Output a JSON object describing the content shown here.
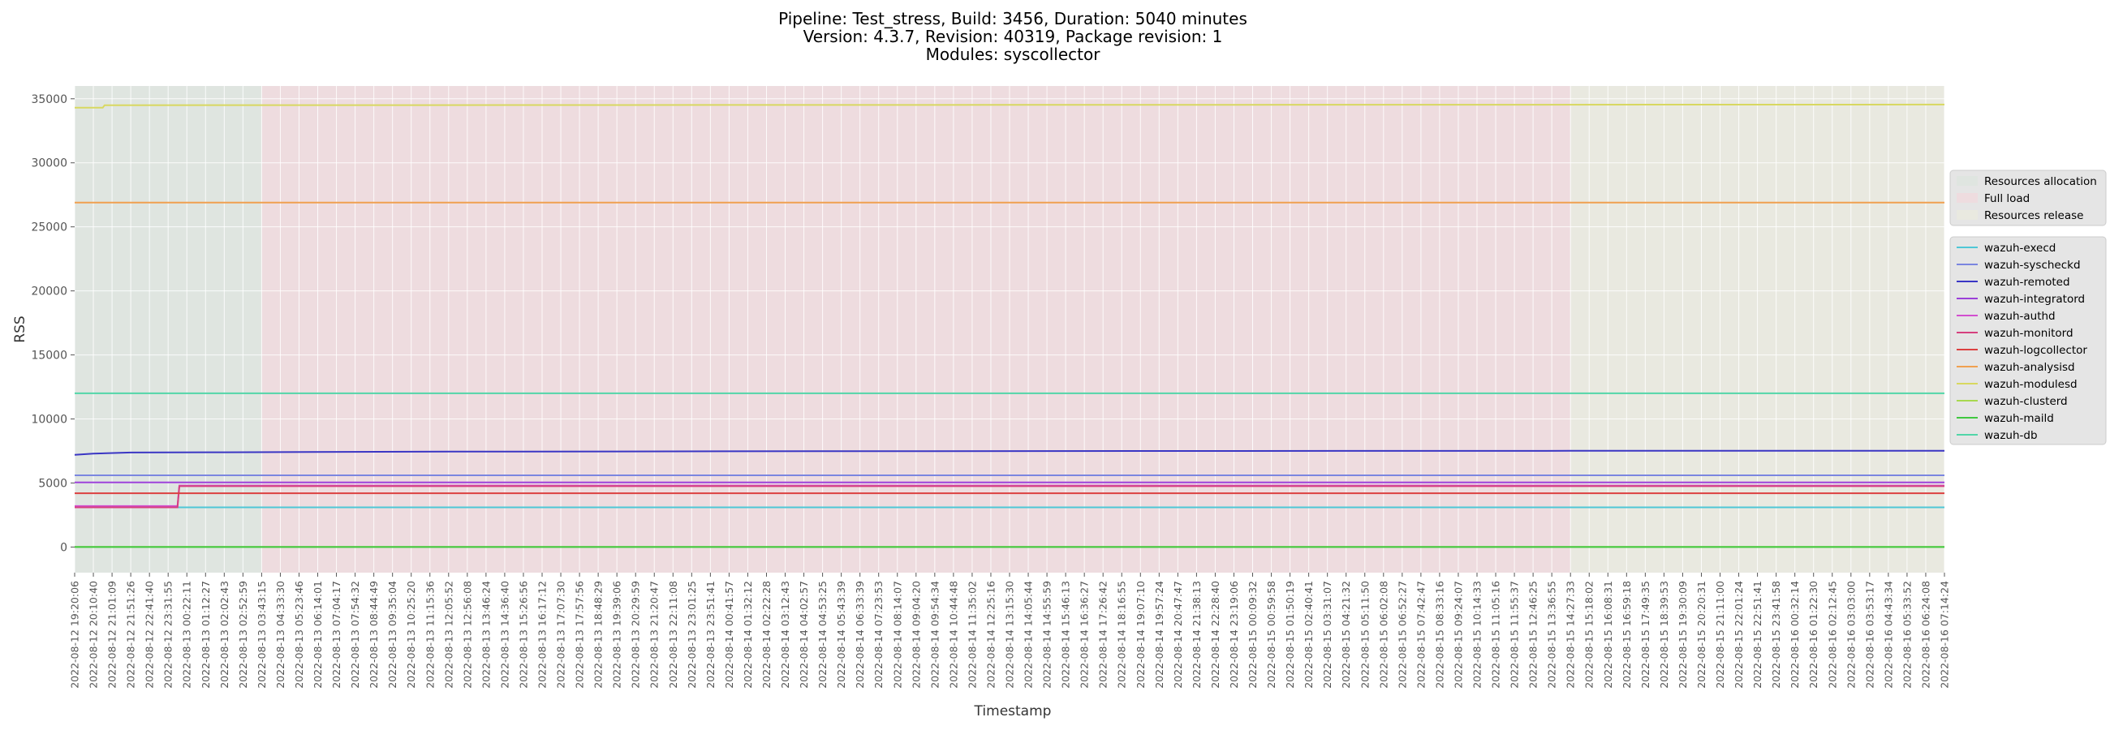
{
  "chart_data": {
    "type": "line",
    "title": [
      "Pipeline: Test_stress, Build: 3456, Duration: 5040 minutes",
      "Version: 4.3.7, Revision: 40319, Package revision: 1",
      "Modules: syscollector"
    ],
    "xlabel": "Timestamp",
    "ylabel": "RSS",
    "ylim": [
      -2000,
      36000
    ],
    "yticks": [
      0,
      5000,
      10000,
      15000,
      20000,
      25000,
      30000,
      35000
    ],
    "grid": true,
    "background": "#e5e5e5",
    "x_categories": [
      "2022-08-12 19:20:06",
      "2022-08-12 20:10:40",
      "2022-08-12 21:01:09",
      "2022-08-12 21:51:26",
      "2022-08-12 22:41:40",
      "2022-08-12 23:31:55",
      "2022-08-13 00:22:11",
      "2022-08-13 01:12:27",
      "2022-08-13 02:02:43",
      "2022-08-13 02:52:59",
      "2022-08-13 03:43:15",
      "2022-08-13 04:33:30",
      "2022-08-13 05:23:46",
      "2022-08-13 06:14:01",
      "2022-08-13 07:04:17",
      "2022-08-13 07:54:32",
      "2022-08-13 08:44:49",
      "2022-08-13 09:35:04",
      "2022-08-13 10:25:20",
      "2022-08-13 11:15:36",
      "2022-08-13 12:05:52",
      "2022-08-13 12:56:08",
      "2022-08-13 13:46:24",
      "2022-08-13 14:36:40",
      "2022-08-13 15:26:56",
      "2022-08-13 16:17:12",
      "2022-08-13 17:07:30",
      "2022-08-13 17:57:56",
      "2022-08-13 18:48:29",
      "2022-08-13 19:39:06",
      "2022-08-13 20:29:59",
      "2022-08-13 21:20:47",
      "2022-08-13 22:11:08",
      "2022-08-13 23:01:25",
      "2022-08-13 23:51:41",
      "2022-08-14 00:41:57",
      "2022-08-14 01:32:12",
      "2022-08-14 02:22:28",
      "2022-08-14 03:12:43",
      "2022-08-14 04:02:57",
      "2022-08-14 04:53:25",
      "2022-08-14 05:43:39",
      "2022-08-14 06:33:39",
      "2022-08-14 07:23:53",
      "2022-08-14 08:14:07",
      "2022-08-14 09:04:20",
      "2022-08-14 09:54:34",
      "2022-08-14 10:44:48",
      "2022-08-14 11:35:02",
      "2022-08-14 12:25:16",
      "2022-08-14 13:15:30",
      "2022-08-14 14:05:44",
      "2022-08-14 14:55:59",
      "2022-08-14 15:46:13",
      "2022-08-14 16:36:27",
      "2022-08-14 17:26:42",
      "2022-08-14 18:16:55",
      "2022-08-14 19:07:10",
      "2022-08-14 19:57:24",
      "2022-08-14 20:47:47",
      "2022-08-14 21:38:13",
      "2022-08-14 22:28:40",
      "2022-08-14 23:19:06",
      "2022-08-15 00:09:32",
      "2022-08-15 00:59:58",
      "2022-08-15 01:50:19",
      "2022-08-15 02:40:41",
      "2022-08-15 03:31:07",
      "2022-08-15 04:21:32",
      "2022-08-15 05:11:50",
      "2022-08-15 06:02:08",
      "2022-08-15 06:52:27",
      "2022-08-15 07:42:47",
      "2022-08-15 08:33:16",
      "2022-08-15 09:24:07",
      "2022-08-15 10:14:33",
      "2022-08-15 11:05:16",
      "2022-08-15 11:55:37",
      "2022-08-15 12:46:25",
      "2022-08-15 13:36:55",
      "2022-08-15 14:27:33",
      "2022-08-15 15:18:02",
      "2022-08-15 16:08:31",
      "2022-08-15 16:59:18",
      "2022-08-15 17:49:35",
      "2022-08-15 18:39:53",
      "2022-08-15 19:30:09",
      "2022-08-15 20:20:31",
      "2022-08-15 21:11:00",
      "2022-08-15 22:01:24",
      "2022-08-15 22:51:41",
      "2022-08-15 23:41:58",
      "2022-08-16 00:32:14",
      "2022-08-16 01:22:30",
      "2022-08-16 02:12:45",
      "2022-08-16 03:03:00",
      "2022-08-16 03:53:17",
      "2022-08-16 04:43:34",
      "2022-08-16 05:33:52",
      "2022-08-16 06:24:08",
      "2022-08-16 07:14:24"
    ],
    "phases": [
      {
        "name": "Resources allocation",
        "start_index": 0,
        "end_index": 10,
        "color": "#dfe5e0"
      },
      {
        "name": "Full load",
        "start_index": 10,
        "end_index": 80,
        "color": "#eedcdf"
      },
      {
        "name": "Resources release",
        "start_index": 80,
        "end_index": 100,
        "color": "#e9e9e0"
      }
    ],
    "phase_legend_position": "right-upper",
    "series_legend_position": "right-middle",
    "series": [
      {
        "name": "wazuh-execd",
        "color": "#4fc7d6",
        "points": [
          [
            0,
            3100
          ],
          [
            100,
            3100
          ]
        ]
      },
      {
        "name": "wazuh-syscheckd",
        "color": "#7b86e0",
        "points": [
          [
            0,
            5600
          ],
          [
            100,
            5600
          ]
        ]
      },
      {
        "name": "wazuh-remoted",
        "color": "#3a36c4",
        "points": [
          [
            0,
            7200
          ],
          [
            1,
            7300
          ],
          [
            3,
            7380
          ],
          [
            8,
            7400
          ],
          [
            20,
            7450
          ],
          [
            40,
            7480
          ],
          [
            60,
            7500
          ],
          [
            80,
            7510
          ],
          [
            100,
            7520
          ]
        ]
      },
      {
        "name": "wazuh-integratord",
        "color": "#9b40d8",
        "points": [
          [
            0,
            5050
          ],
          [
            100,
            5050
          ]
        ]
      },
      {
        "name": "wazuh-authd",
        "color": "#d24fcf",
        "points": [
          [
            0,
            3200
          ],
          [
            5.5,
            3200
          ],
          [
            5.6,
            4800
          ],
          [
            100,
            4800
          ]
        ]
      },
      {
        "name": "wazuh-monitord",
        "color": "#d6407f",
        "points": [
          [
            0,
            3100
          ],
          [
            5.5,
            3100
          ],
          [
            5.6,
            4750
          ],
          [
            100,
            4750
          ]
        ]
      },
      {
        "name": "wazuh-logcollector",
        "color": "#dc4040",
        "points": [
          [
            0,
            4200
          ],
          [
            100,
            4200
          ]
        ]
      },
      {
        "name": "wazuh-analysisd",
        "color": "#f0a050",
        "points": [
          [
            0,
            26900
          ],
          [
            100,
            26900
          ]
        ]
      },
      {
        "name": "wazuh-modulesd",
        "color": "#d8d860",
        "points": [
          [
            0,
            34300
          ],
          [
            1.5,
            34300
          ],
          [
            1.6,
            34500
          ],
          [
            100,
            34550
          ]
        ]
      },
      {
        "name": "wazuh-clusterd",
        "color": "#a8d850",
        "points": [
          [
            0,
            10
          ],
          [
            100,
            10
          ]
        ]
      },
      {
        "name": "wazuh-maild",
        "color": "#40c840",
        "points": [
          [
            0,
            0
          ],
          [
            100,
            0
          ]
        ]
      },
      {
        "name": "wazuh-db",
        "color": "#52d6a8",
        "points": [
          [
            0,
            12000
          ],
          [
            100,
            12000
          ]
        ]
      }
    ]
  }
}
